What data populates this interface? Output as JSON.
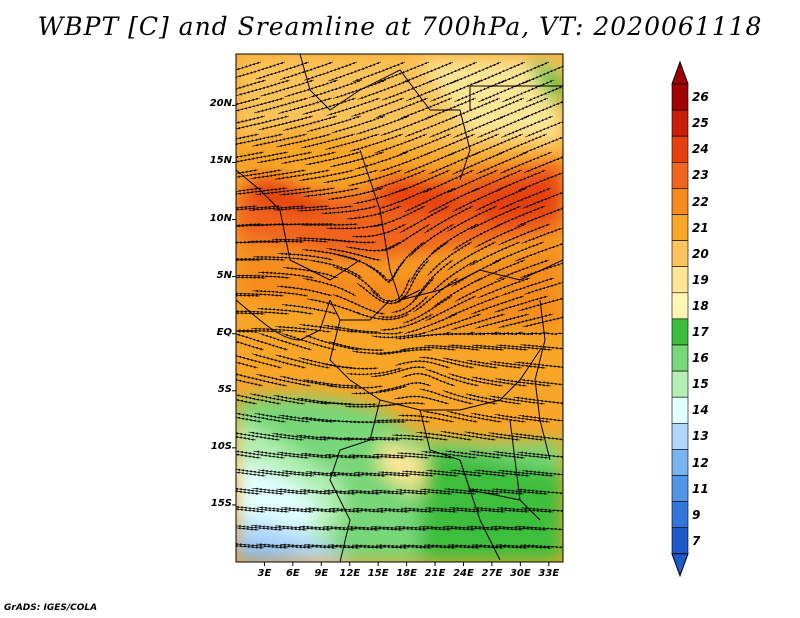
{
  "title": "WBPT [C] and Sreamline at 700hPa, VT: 2020061118",
  "footer": "GrADS: IGES/COLA",
  "map": {
    "lat_labels": [
      "20N",
      "15N",
      "10N",
      "5N",
      "EQ",
      "5S",
      "10S",
      "15S"
    ],
    "lat_values": [
      20,
      15,
      10,
      5,
      0,
      -5,
      -10,
      -15
    ],
    "lon_labels": [
      "3E",
      "6E",
      "9E",
      "12E",
      "15E",
      "18E",
      "21E",
      "24E",
      "27E",
      "30E",
      "33E"
    ],
    "lon_values": [
      3,
      6,
      9,
      12,
      15,
      18,
      21,
      24,
      27,
      30,
      33
    ],
    "lat_range": [
      -20,
      24.5
    ],
    "lon_range": [
      0,
      34.5
    ]
  },
  "colorbar": {
    "labels": [
      "26",
      "25",
      "24",
      "23",
      "22",
      "21",
      "20",
      "19",
      "18",
      "17",
      "16",
      "15",
      "14",
      "13",
      "12",
      "11",
      "9",
      "7"
    ],
    "colors": [
      "#a00000",
      "#c81e0a",
      "#e6400f",
      "#f0641e",
      "#f58c1e",
      "#f8a528",
      "#fbc35a",
      "#fde696",
      "#fff5b4",
      "#3cbe3c",
      "#78d778",
      "#b4f0b4",
      "#e1ffff",
      "#afd7fa",
      "#78b4f0",
      "#5096e6",
      "#3278dc",
      "#1e5ac8"
    ],
    "top_color": "#a00000",
    "bottom_color": "#1e5ac8"
  }
}
